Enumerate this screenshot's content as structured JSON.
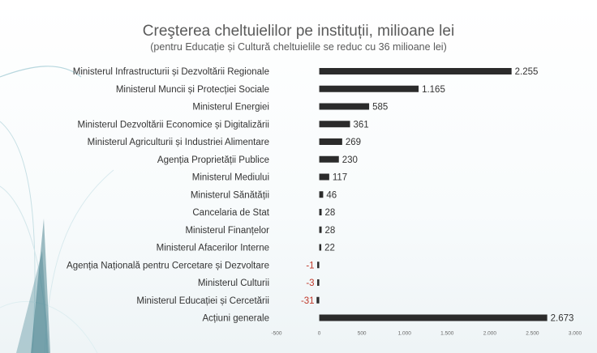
{
  "chart_data": {
    "type": "bar",
    "orientation": "horizontal",
    "title": "Creşterea cheltuielilor pe instituții, milioane lei",
    "subtitle": "(pentru Educație și Cultură cheltuielile se reduc cu 36 milioane lei)",
    "categories": [
      "Ministerul Infrastructurii și Dezvoltării Regionale",
      "Ministerul Muncii și Protecției Sociale",
      "Ministerul Energiei",
      "Ministerul Dezvoltării Economice și Digitalizării",
      "Ministerul Agriculturii și Industriei Alimentare",
      "Agenția Proprietății Publice",
      "Ministerul Mediului",
      "Ministerul Sănătății",
      "Cancelaria de Stat",
      "Ministerul Finanțelor",
      "Ministerul Afacerilor Interne",
      "Agenția Națională pentru Cercetare și Dezvoltare",
      "Ministerul Culturii",
      "Ministerul Educației și Cercetării",
      "Acțiuni generale"
    ],
    "values": [
      2255,
      1165,
      585,
      361,
      269,
      230,
      117,
      46,
      28,
      28,
      22,
      -1,
      -3,
      -31,
      2673
    ],
    "value_labels": [
      "2.255",
      "1.165",
      "585",
      "361",
      "269",
      "230",
      "117",
      "46",
      "28",
      "28",
      "22",
      "-1",
      "-3",
      "-31",
      "2.673"
    ],
    "xlim": [
      -500,
      3000
    ],
    "xticks": [
      -500,
      0,
      500,
      1000,
      1500,
      2000,
      2500,
      3000
    ],
    "xtick_labels": [
      "-500",
      "0",
      "500",
      "1.000",
      "1.500",
      "2.000",
      "2.500",
      "3.000"
    ],
    "grid": false,
    "colors": {
      "bar": "#2b2b2b",
      "negative_label": "#c0392b",
      "text": "#333333"
    }
  }
}
